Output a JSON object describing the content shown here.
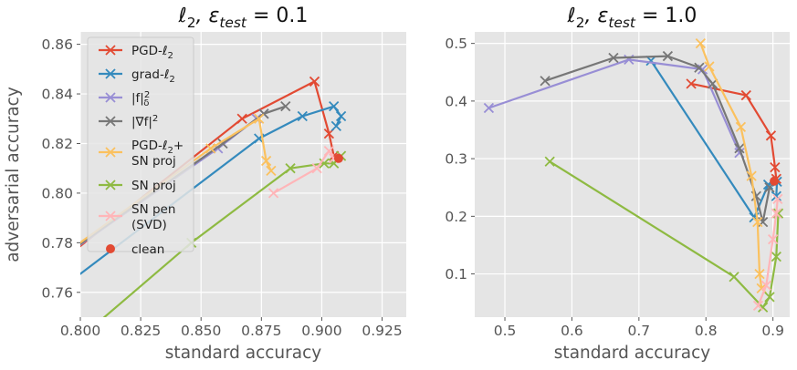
{
  "chart_data": [
    {
      "type": "line",
      "title": "ℓ₂, ε_test = 0.1",
      "xlabel": "standard accuracy",
      "ylabel": "adversarial accuracy",
      "xlim": [
        0.8,
        0.935
      ],
      "ylim": [
        0.75,
        0.865
      ],
      "xticks": [
        {
          "v": 0.8,
          "label": "0.800"
        },
        {
          "v": 0.825,
          "label": "0.825"
        },
        {
          "v": 0.85,
          "label": "0.850"
        },
        {
          "v": 0.875,
          "label": "0.875"
        },
        {
          "v": 0.9,
          "label": "0.900"
        },
        {
          "v": 0.925,
          "label": "0.925"
        }
      ],
      "yticks": [
        {
          "v": 0.76,
          "label": "0.76"
        },
        {
          "v": 0.78,
          "label": "0.78"
        },
        {
          "v": 0.8,
          "label": "0.80"
        },
        {
          "v": 0.82,
          "label": "0.82"
        },
        {
          "v": 0.84,
          "label": "0.84"
        },
        {
          "v": 0.86,
          "label": "0.86"
        }
      ],
      "grid": true,
      "legend": {
        "position": "upper-left",
        "entries": [
          {
            "label": "PGD-ℓ₂",
            "color": "#E24A33",
            "marker": "x"
          },
          {
            "label": "grad-ℓ₂",
            "color": "#348ABD",
            "marker": "x"
          },
          {
            "label": "|f|²δ",
            "color": "#988ED5",
            "marker": "x"
          },
          {
            "label": "|∇f|²",
            "color": "#777777",
            "marker": "x"
          },
          {
            "label": "PGD-ℓ₂+\nSN proj",
            "color": "#FBC15E",
            "marker": "x"
          },
          {
            "label": "SN proj",
            "color": "#8EBA42",
            "marker": "x"
          },
          {
            "label": "SN pen\n(SVD)",
            "color": "#FFB5B8",
            "marker": "x"
          },
          {
            "label": "clean",
            "color": "#E24A33",
            "marker": "o"
          }
        ]
      },
      "series": [
        {
          "name": "PGD-ℓ₂",
          "color": "#E24A33",
          "marker": "x",
          "x": [
            0.76,
            0.867,
            0.897,
            0.903,
            0.905
          ],
          "y": [
            0.748,
            0.83,
            0.845,
            0.824,
            0.815
          ]
        },
        {
          "name": "grad-ℓ₂",
          "color": "#348ABD",
          "marker": "x",
          "x": [
            0.76,
            0.874,
            0.892,
            0.905,
            0.908,
            0.906
          ],
          "y": [
            0.738,
            0.822,
            0.831,
            0.835,
            0.831,
            0.827
          ]
        },
        {
          "name": "|f|²δ",
          "color": "#988ED5",
          "marker": "x",
          "x": [
            0.76,
            0.857,
            0.873,
            0.876
          ],
          "y": [
            0.752,
            0.818,
            0.83,
            0.832
          ]
        },
        {
          "name": "|∇f|²",
          "color": "#777777",
          "marker": "x",
          "x": [
            0.76,
            0.859,
            0.876,
            0.885
          ],
          "y": [
            0.752,
            0.82,
            0.832,
            0.835
          ]
        },
        {
          "name": "PGD-ℓ₂+SN proj",
          "color": "#FBC15E",
          "marker": "x",
          "x": [
            0.76,
            0.854,
            0.874,
            0.877,
            0.879
          ],
          "y": [
            0.752,
            0.818,
            0.83,
            0.813,
            0.809
          ]
        },
        {
          "name": "SN proj",
          "color": "#8EBA42",
          "marker": "x",
          "x": [
            0.78,
            0.846,
            0.887,
            0.901,
            0.905,
            0.908
          ],
          "y": [
            0.725,
            0.78,
            0.81,
            0.812,
            0.812,
            0.815
          ]
        },
        {
          "name": "SN pen (SVD)",
          "color": "#FFB5B8",
          "marker": "x",
          "x": [
            0.88,
            0.898,
            0.903,
            0.905
          ],
          "y": [
            0.8,
            0.81,
            0.817,
            0.814
          ]
        },
        {
          "name": "clean",
          "color": "#E24A33",
          "marker": "o",
          "line": false,
          "x": [
            0.907
          ],
          "y": [
            0.814
          ]
        }
      ]
    },
    {
      "type": "line",
      "title": "ℓ₂, ε_test = 1.0",
      "xlabel": "standard accuracy",
      "ylabel": "",
      "xlim": [
        0.455,
        0.925
      ],
      "ylim": [
        0.025,
        0.52
      ],
      "xticks": [
        {
          "v": 0.5,
          "label": "0.5"
        },
        {
          "v": 0.6,
          "label": "0.6"
        },
        {
          "v": 0.7,
          "label": "0.7"
        },
        {
          "v": 0.8,
          "label": "0.8"
        },
        {
          "v": 0.9,
          "label": "0.9"
        }
      ],
      "yticks": [
        {
          "v": 0.1,
          "label": "0.1"
        },
        {
          "v": 0.2,
          "label": "0.2"
        },
        {
          "v": 0.3,
          "label": "0.3"
        },
        {
          "v": 0.4,
          "label": "0.4"
        },
        {
          "v": 0.5,
          "label": "0.5"
        }
      ],
      "grid": true,
      "series": [
        {
          "name": "PGD-ℓ₂",
          "color": "#E24A33",
          "marker": "x",
          "x": [
            0.778,
            0.86,
            0.897,
            0.903,
            0.905
          ],
          "y": [
            0.43,
            0.41,
            0.34,
            0.285,
            0.265
          ]
        },
        {
          "name": "grad-ℓ₂",
          "color": "#348ABD",
          "marker": "x",
          "x": [
            0.718,
            0.872,
            0.893,
            0.906,
            0.905
          ],
          "y": [
            0.47,
            0.198,
            0.255,
            0.26,
            0.235
          ]
        },
        {
          "name": "|f|²δ",
          "color": "#988ED5",
          "marker": "x",
          "x": [
            0.476,
            0.685,
            0.795,
            0.85
          ],
          "y": [
            0.388,
            0.472,
            0.455,
            0.31
          ]
        },
        {
          "name": "|∇f|²",
          "color": "#777777",
          "marker": "x",
          "x": [
            0.56,
            0.662,
            0.743,
            0.79,
            0.81,
            0.85,
            0.875,
            0.885,
            0.895
          ],
          "y": [
            0.435,
            0.475,
            0.478,
            0.458,
            0.43,
            0.318,
            0.235,
            0.19,
            0.25
          ]
        },
        {
          "name": "PGD-ℓ₂+SN proj",
          "color": "#FBC15E",
          "marker": "x",
          "x": [
            0.792,
            0.805,
            0.852,
            0.868,
            0.877,
            0.88,
            0.883
          ],
          "y": [
            0.5,
            0.46,
            0.355,
            0.27,
            0.19,
            0.1,
            0.075
          ]
        },
        {
          "name": "SN proj",
          "color": "#8EBA42",
          "marker": "x",
          "x": [
            0.567,
            0.842,
            0.885,
            0.895,
            0.905,
            0.908
          ],
          "y": [
            0.295,
            0.095,
            0.042,
            0.06,
            0.13,
            0.205
          ]
        },
        {
          "name": "SN pen (SVD)",
          "color": "#FFB5B8",
          "marker": "x",
          "x": [
            0.878,
            0.89,
            0.9,
            0.905,
            0.907
          ],
          "y": [
            0.045,
            0.08,
            0.16,
            0.205,
            0.23
          ]
        },
        {
          "name": "clean",
          "color": "#E24A33",
          "marker": "o",
          "line": false,
          "x": [
            0.902
          ],
          "y": [
            0.261
          ]
        }
      ]
    }
  ]
}
